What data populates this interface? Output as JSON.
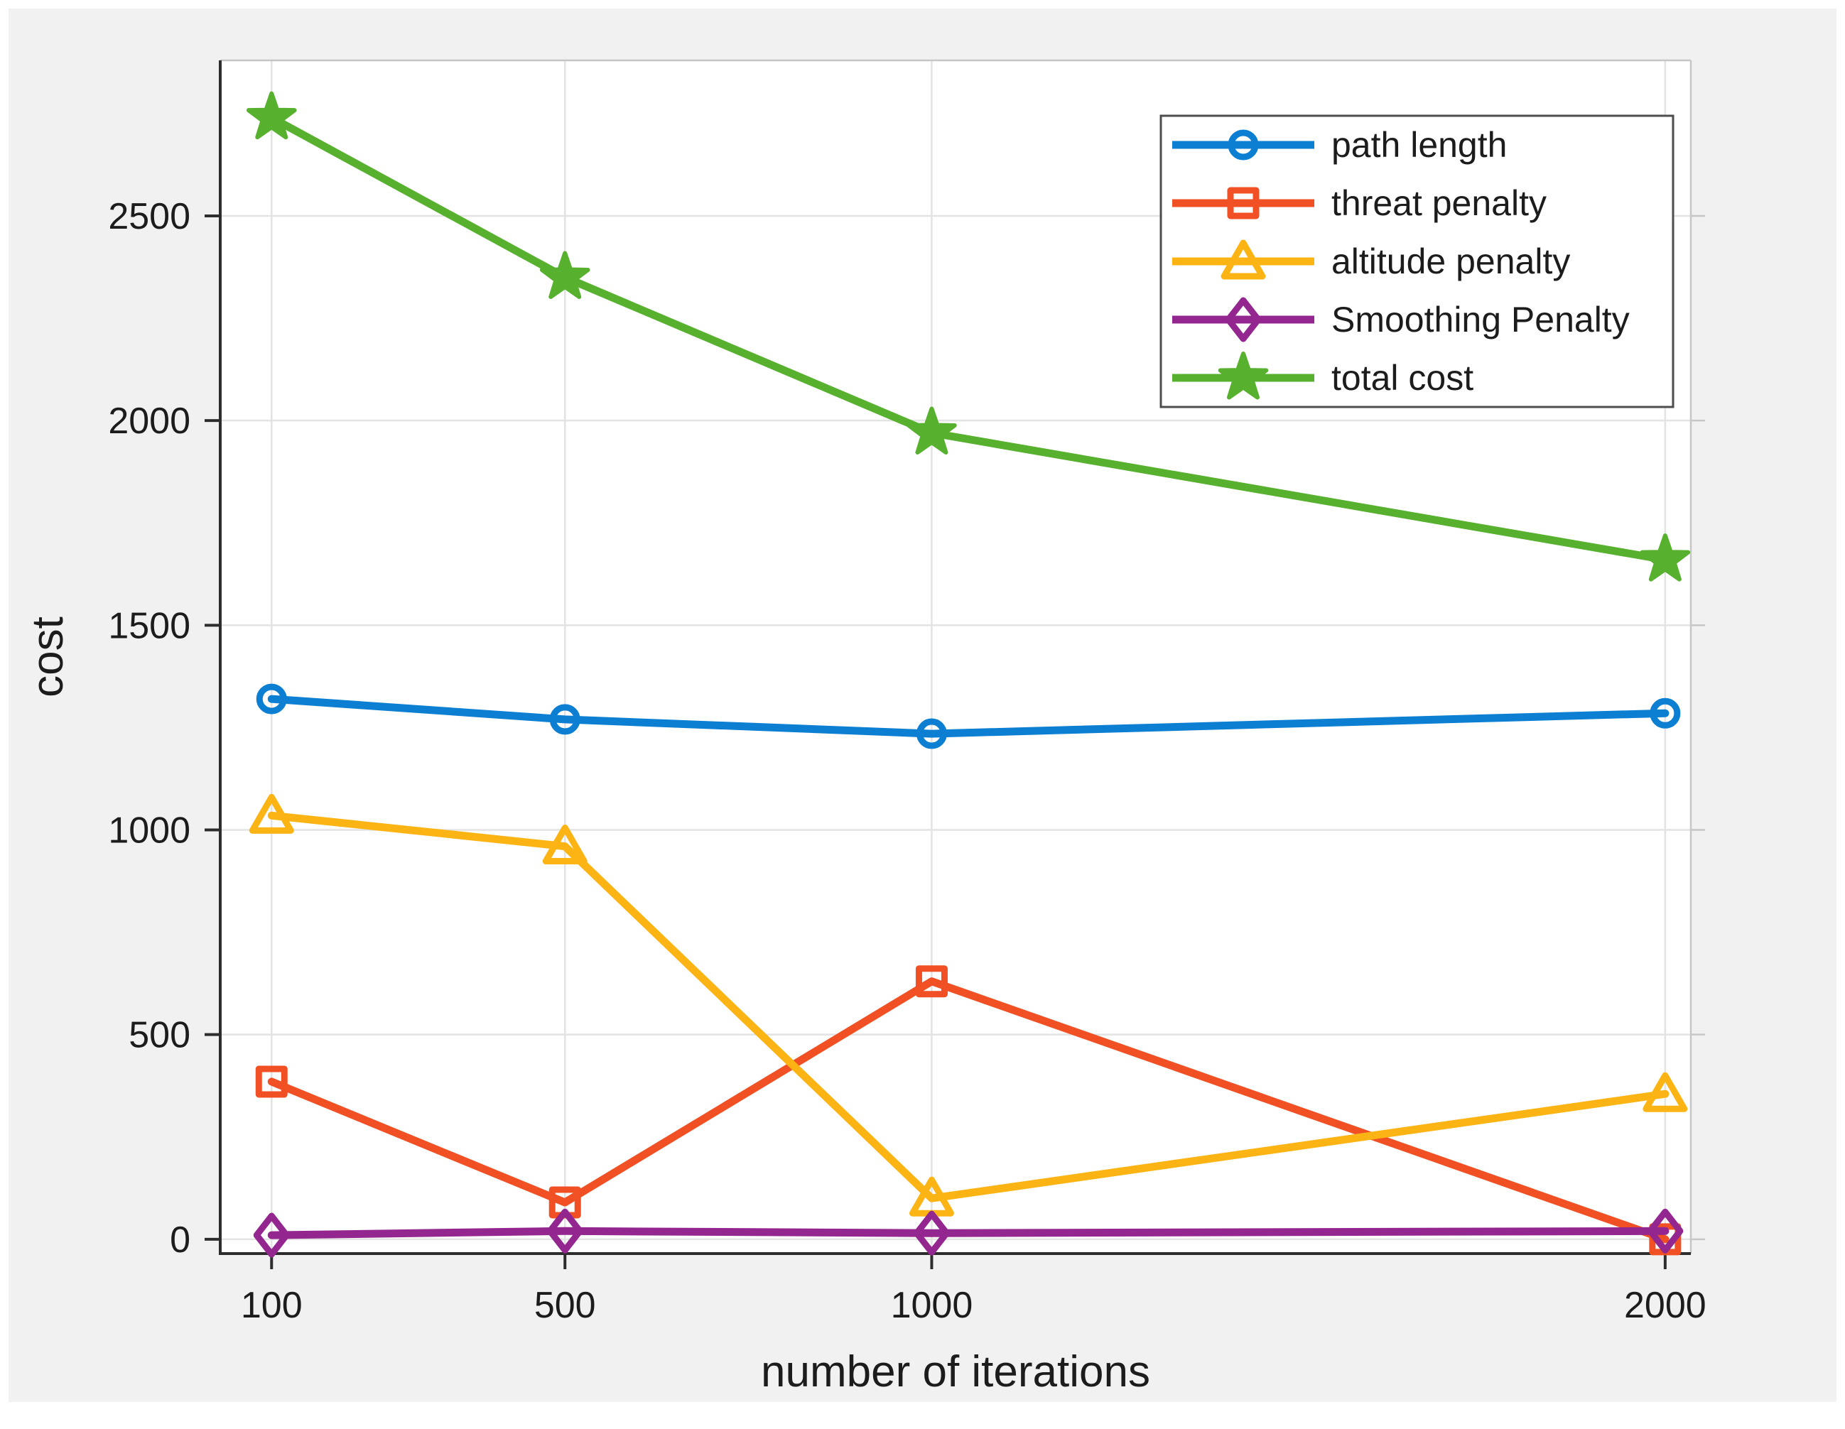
{
  "figure": {
    "page_background": "#ffffff",
    "figure_background": "#f1f1f1",
    "plot_background": "#ffffff",
    "gridline_color": "#e3e3e3",
    "axis_color": "#2d2d2d",
    "box_color": "#c6c6c6",
    "text_color": "#1c1c1c",
    "legend_border_color": "#4d4d4d"
  },
  "chart_data": {
    "type": "line",
    "title": "",
    "xlabel": "number of iterations",
    "ylabel": "cost",
    "x": [
      100,
      500,
      1000,
      2000
    ],
    "xticks": [
      "100",
      "500",
      "1000",
      "2000"
    ],
    "yticks": [
      "0",
      "500",
      "1000",
      "1500",
      "2000",
      "2500"
    ],
    "ytick_values": [
      0,
      500,
      1000,
      1500,
      2000,
      2500
    ],
    "xlim": [
      30,
      2035
    ],
    "ylim": [
      -35,
      2880
    ],
    "grid": true,
    "legend_position": "top-right",
    "series": [
      {
        "name": "path length",
        "marker": "circle",
        "color": "#0d7fd2",
        "values": [
          1320,
          1270,
          1235,
          1285
        ]
      },
      {
        "name": "threat penalty",
        "marker": "square",
        "color": "#f05023",
        "values": [
          385,
          90,
          630,
          0
        ]
      },
      {
        "name": "altitude penalty",
        "marker": "triangle",
        "color": "#fcb415",
        "values": [
          1035,
          960,
          100,
          355
        ]
      },
      {
        "name": "Smoothing Penalty",
        "marker": "diamond",
        "color": "#93278f",
        "values": [
          10,
          20,
          15,
          20
        ]
      },
      {
        "name": "total cost",
        "marker": "star",
        "color": "#57b12e",
        "values": [
          2740,
          2350,
          1970,
          1660
        ]
      }
    ]
  }
}
